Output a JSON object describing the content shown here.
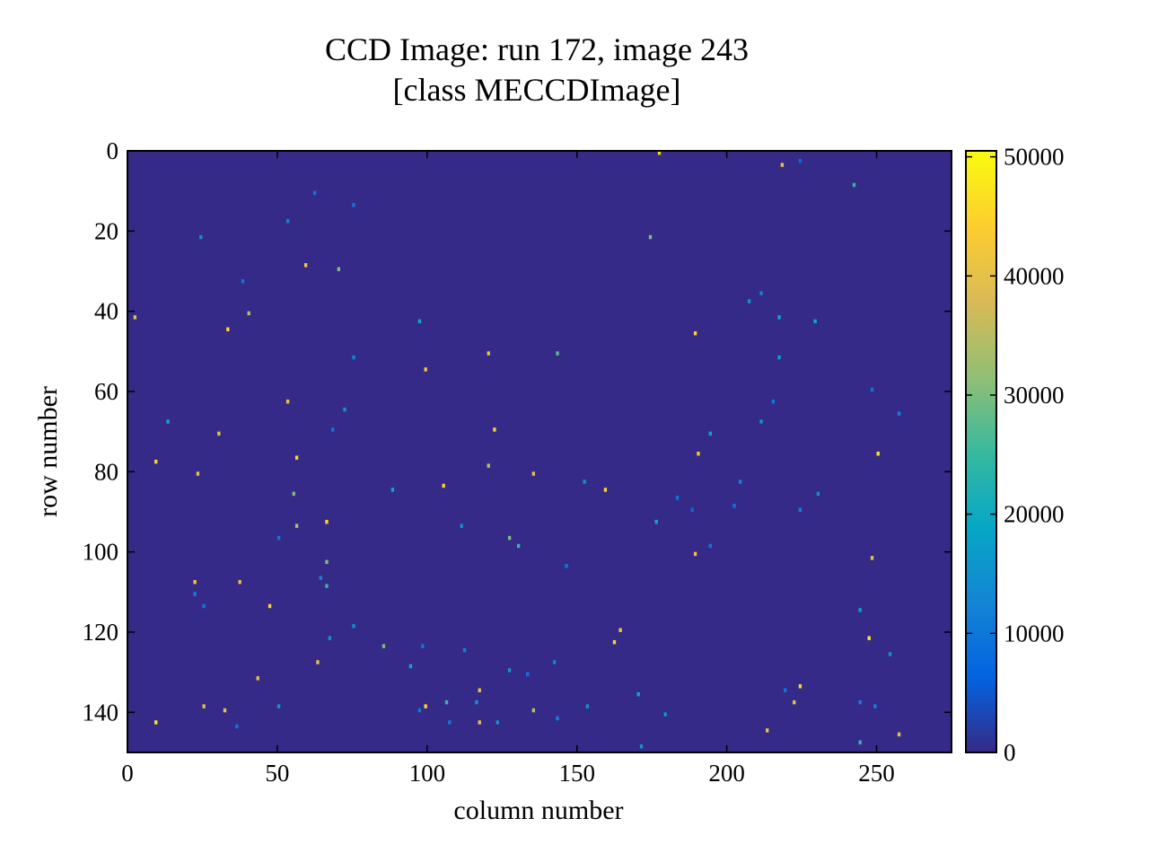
{
  "chart_data": {
    "type": "heatmap",
    "title": "CCD Image: run 172, image 243",
    "subtitle": "[class MECCDImage]",
    "x_label": "column number",
    "y_label": "row number",
    "xlim": [
      0,
      275
    ],
    "ylim": [
      150,
      0
    ],
    "xticks": [
      0,
      50,
      100,
      150,
      200,
      250
    ],
    "yticks": [
      0,
      20,
      40,
      60,
      80,
      100,
      120,
      140
    ],
    "clim": [
      0,
      50500
    ],
    "cticks": [
      0,
      10000,
      20000,
      30000,
      40000,
      50000
    ],
    "colormap": [
      "#352a87",
      "#0363e1",
      "#1485d4",
      "#06a7c6",
      "#38b99e",
      "#92bf73",
      "#d9ba56",
      "#fcce2e",
      "#f9fb0e"
    ],
    "pixels": {
      "x": [
        177,
        218,
        224,
        242,
        62,
        75,
        53,
        24,
        174,
        59,
        70,
        38,
        40,
        2,
        33,
        97,
        189,
        75,
        120,
        143,
        99,
        207,
        211,
        217,
        229,
        217,
        215,
        248,
        257,
        53,
        72,
        13,
        30,
        68,
        122,
        211,
        194,
        9,
        56,
        23,
        120,
        135,
        190,
        250,
        105,
        152,
        159,
        183,
        204,
        202,
        230,
        224,
        55,
        88,
        176,
        188,
        66,
        56,
        111,
        50,
        127,
        130,
        189,
        194,
        248,
        66,
        22,
        37,
        64,
        66,
        146,
        22,
        47,
        25,
        244,
        67,
        75,
        162,
        164,
        247,
        85,
        98,
        112,
        254,
        63,
        94,
        127,
        142,
        133,
        43,
        117,
        219,
        224,
        170,
        25,
        32,
        50,
        99,
        97,
        106,
        116,
        135,
        153,
        179,
        222,
        244,
        249,
        9,
        36,
        117,
        123,
        107,
        143,
        213,
        257,
        244,
        171
      ],
      "y": [
        0,
        3,
        2,
        8,
        10,
        13,
        17,
        21,
        21,
        28,
        29,
        32,
        40,
        41,
        44,
        42,
        45,
        51,
        50,
        50,
        54,
        37,
        35,
        41,
        42,
        51,
        62,
        59,
        65,
        62,
        64,
        67,
        70,
        69,
        69,
        67,
        70,
        77,
        76,
        80,
        78,
        80,
        75,
        75,
        83,
        82,
        84,
        86,
        82,
        88,
        85,
        89,
        85,
        84,
        92,
        89,
        92,
        93,
        93,
        96,
        96,
        98,
        100,
        98,
        101,
        102,
        107,
        107,
        106,
        108,
        103,
        110,
        113,
        113,
        114,
        121,
        118,
        122,
        119,
        121,
        123,
        123,
        124,
        125,
        127,
        128,
        129,
        127,
        130,
        131,
        134,
        134,
        133,
        135,
        138,
        139,
        138,
        138,
        139,
        137,
        137,
        139,
        138,
        140,
        137,
        137,
        138,
        142,
        143,
        142,
        142,
        142,
        141,
        144,
        145,
        147,
        148
      ],
      "values": [
        45000,
        40000,
        8000,
        25000,
        10000,
        10000,
        12000,
        15000,
        30000,
        42000,
        30000,
        10000,
        35000,
        40000,
        45000,
        20000,
        45000,
        12000,
        40000,
        28000,
        42000,
        15000,
        12000,
        20000,
        20000,
        18000,
        10000,
        10000,
        12000,
        40000,
        15000,
        20000,
        40000,
        10000,
        45000,
        15000,
        20000,
        45000,
        45000,
        40000,
        35000,
        40000,
        42000,
        48000,
        45000,
        15000,
        45000,
        10000,
        12000,
        10000,
        15000,
        12000,
        30000,
        20000,
        20000,
        8000,
        45000,
        35000,
        15000,
        10000,
        30000,
        25000,
        42000,
        10000,
        40000,
        30000,
        42000,
        40000,
        12000,
        25000,
        10000,
        12000,
        45000,
        10000,
        18000,
        15000,
        15000,
        45000,
        42000,
        48000,
        30000,
        10000,
        12000,
        15000,
        40000,
        20000,
        15000,
        12000,
        10000,
        40000,
        40000,
        10000,
        45000,
        20000,
        40000,
        40000,
        15000,
        45000,
        10000,
        25000,
        15000,
        35000,
        15000,
        15000,
        40000,
        12000,
        12000,
        48000,
        10000,
        40000,
        15000,
        10000,
        12000,
        40000,
        40000,
        25000,
        15000
      ]
    }
  }
}
